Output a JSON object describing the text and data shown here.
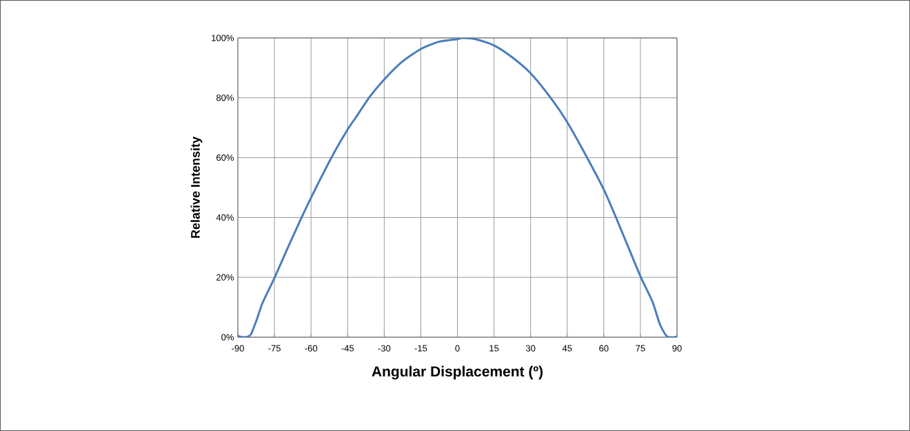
{
  "chart_data": {
    "type": "line",
    "xlabel": "Angular Displacement (º)",
    "ylabel": "Relative Intensity",
    "xlim": [
      -90,
      90
    ],
    "xticks": [
      -90,
      -75,
      -60,
      -45,
      -30,
      -15,
      0,
      15,
      30,
      45,
      60,
      75,
      90
    ],
    "ylim": [
      0,
      100
    ],
    "yticks": [
      {
        "value": 0,
        "label": "0%"
      },
      {
        "value": 20,
        "label": "20%"
      },
      {
        "value": 40,
        "label": "40%"
      },
      {
        "value": 60,
        "label": "60%"
      },
      {
        "value": 80,
        "label": "80%"
      },
      {
        "value": 100,
        "label": "100%"
      }
    ],
    "grid": true,
    "line_style": "solid",
    "series": [
      {
        "color": "#4a7ebb",
        "x": [
          -90,
          -88,
          -86,
          -84.6,
          -82.2,
          -79.9,
          -75,
          -69.8,
          -64,
          -60.2,
          -56.4,
          -50.8,
          -45,
          -41.5,
          -35.8,
          -29.8,
          -22.7,
          -15.2,
          -7.7,
          0,
          2,
          7.4,
          15,
          22.5,
          30,
          38.5,
          44.9,
          53.1,
          60.2,
          64.9,
          70.6,
          75.1,
          80,
          82.9,
          85.7,
          88,
          90
        ],
        "values": [
          0.4,
          0,
          0.2,
          1,
          6,
          11.4,
          19.8,
          29.4,
          39.8,
          46.3,
          52.5,
          61.3,
          69.4,
          73.6,
          80.5,
          86.3,
          92,
          96.2,
          98.7,
          99.6,
          100,
          99.6,
          97.5,
          93.5,
          88.2,
          79.7,
          72,
          60.1,
          49,
          40.2,
          29,
          20.2,
          11.8,
          4.5,
          0.4,
          0,
          0.2
        ]
      }
    ]
  }
}
